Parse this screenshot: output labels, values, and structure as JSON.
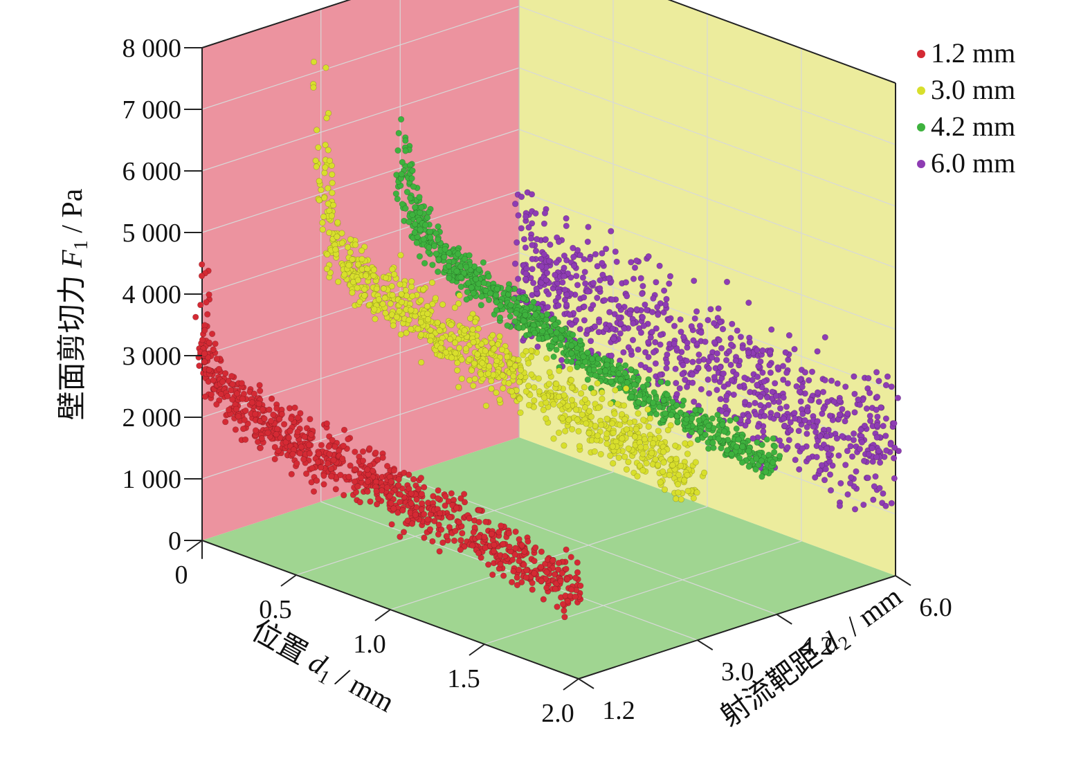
{
  "chart_data": {
    "type": "scatter",
    "projection": "3d",
    "z_axis": {
      "label_prefix": "壁面剪切力 ",
      "label_symbol": "F",
      "label_sub": "1",
      "label_unit": " / Pa",
      "range": [
        0,
        8000
      ],
      "ticks": [
        0,
        1000,
        2000,
        3000,
        4000,
        5000,
        6000,
        7000,
        8000
      ],
      "tick_labels": [
        "0",
        "1 000",
        "2 000",
        "3 000",
        "4 000",
        "5 000",
        "6 000",
        "7 000",
        "8 000"
      ]
    },
    "x_axis": {
      "label_prefix": "位置 ",
      "label_symbol": "d",
      "label_sub": "1",
      "label_unit": " / mm",
      "range": [
        0,
        2.0
      ],
      "ticks": [
        0,
        0.5,
        1.0,
        1.5,
        2.0
      ],
      "tick_labels": [
        "0",
        "0.5",
        "1.0",
        "1.5",
        "2.0"
      ]
    },
    "y_axis": {
      "label_prefix": "射流靶距 ",
      "label_symbol": "d",
      "label_sub": "2",
      "label_unit": " / mm",
      "ticks": [
        1.2,
        3.0,
        4.2,
        6.0
      ],
      "tick_labels": [
        "1.2",
        "3.0",
        "4.2",
        "6.0"
      ]
    },
    "walls": {
      "back_left": "#ec939f",
      "back_right": "#ecec9d",
      "floor": "#a0d591"
    },
    "grid": true,
    "legend_position": "top-right",
    "series": [
      {
        "name": "1.2 mm",
        "color": "#d42a34",
        "d2": 1.2,
        "x": [
          0.0,
          0.01,
          0.03,
          0.06,
          0.1,
          0.15,
          0.25,
          0.4,
          0.6,
          0.8,
          1.0,
          1.2,
          1.4,
          1.6,
          1.8,
          2.0
        ],
        "y_mean": [
          4200,
          3600,
          3000,
          2700,
          2500,
          2450,
          2350,
          2250,
          2150,
          2050,
          1950,
          1850,
          1750,
          1650,
          1550,
          1450
        ],
        "y_spread": [
          700,
          700,
          600,
          550,
          500,
          500,
          500,
          500,
          500,
          500,
          500,
          500,
          500,
          500,
          500,
          500
        ]
      },
      {
        "name": "3.0 mm",
        "color": "#d8df2c",
        "d2": 3.0,
        "x": [
          0.0,
          0.01,
          0.03,
          0.06,
          0.1,
          0.15,
          0.25,
          0.4,
          0.6,
          0.8,
          1.0,
          1.2,
          1.4,
          1.6,
          1.8,
          2.0
        ],
        "y_mean": [
          6800,
          5800,
          4900,
          4400,
          4100,
          3950,
          3800,
          3700,
          3550,
          3400,
          3250,
          3100,
          3000,
          2850,
          2750,
          2650
        ],
        "y_spread": [
          900,
          800,
          700,
          650,
          600,
          600,
          600,
          600,
          600,
          600,
          600,
          600,
          600,
          600,
          600,
          600
        ]
      },
      {
        "name": "4.2 mm",
        "color": "#3eb23e",
        "d2": 4.2,
        "x": [
          0.0,
          0.02,
          0.05,
          0.1,
          0.2,
          0.4,
          0.6,
          0.8,
          1.0,
          1.2,
          1.4,
          1.6,
          1.8,
          2.0
        ],
        "y_mean": [
          5600,
          4900,
          4500,
          4200,
          3900,
          3600,
          3400,
          3200,
          3000,
          2850,
          2700,
          2600,
          2500,
          2450
        ],
        "y_spread": [
          600,
          500,
          450,
          400,
          350,
          300,
          300,
          300,
          300,
          300,
          300,
          300,
          300,
          300
        ]
      },
      {
        "name": "6.0 mm",
        "color": "#8e3cb3",
        "d2": 6.0,
        "x": [
          0.0,
          0.05,
          0.2,
          0.4,
          0.6,
          0.8,
          1.0,
          1.2,
          1.4,
          1.6,
          1.8,
          2.0
        ],
        "y_mean": [
          2900,
          2800,
          2700,
          2600,
          2500,
          2400,
          2300,
          2200,
          2150,
          2100,
          2050,
          2000
        ],
        "y_spread": [
          1400,
          1300,
          1200,
          1200,
          1200,
          1200,
          1200,
          1200,
          1200,
          1200,
          1200,
          1200
        ]
      }
    ]
  }
}
